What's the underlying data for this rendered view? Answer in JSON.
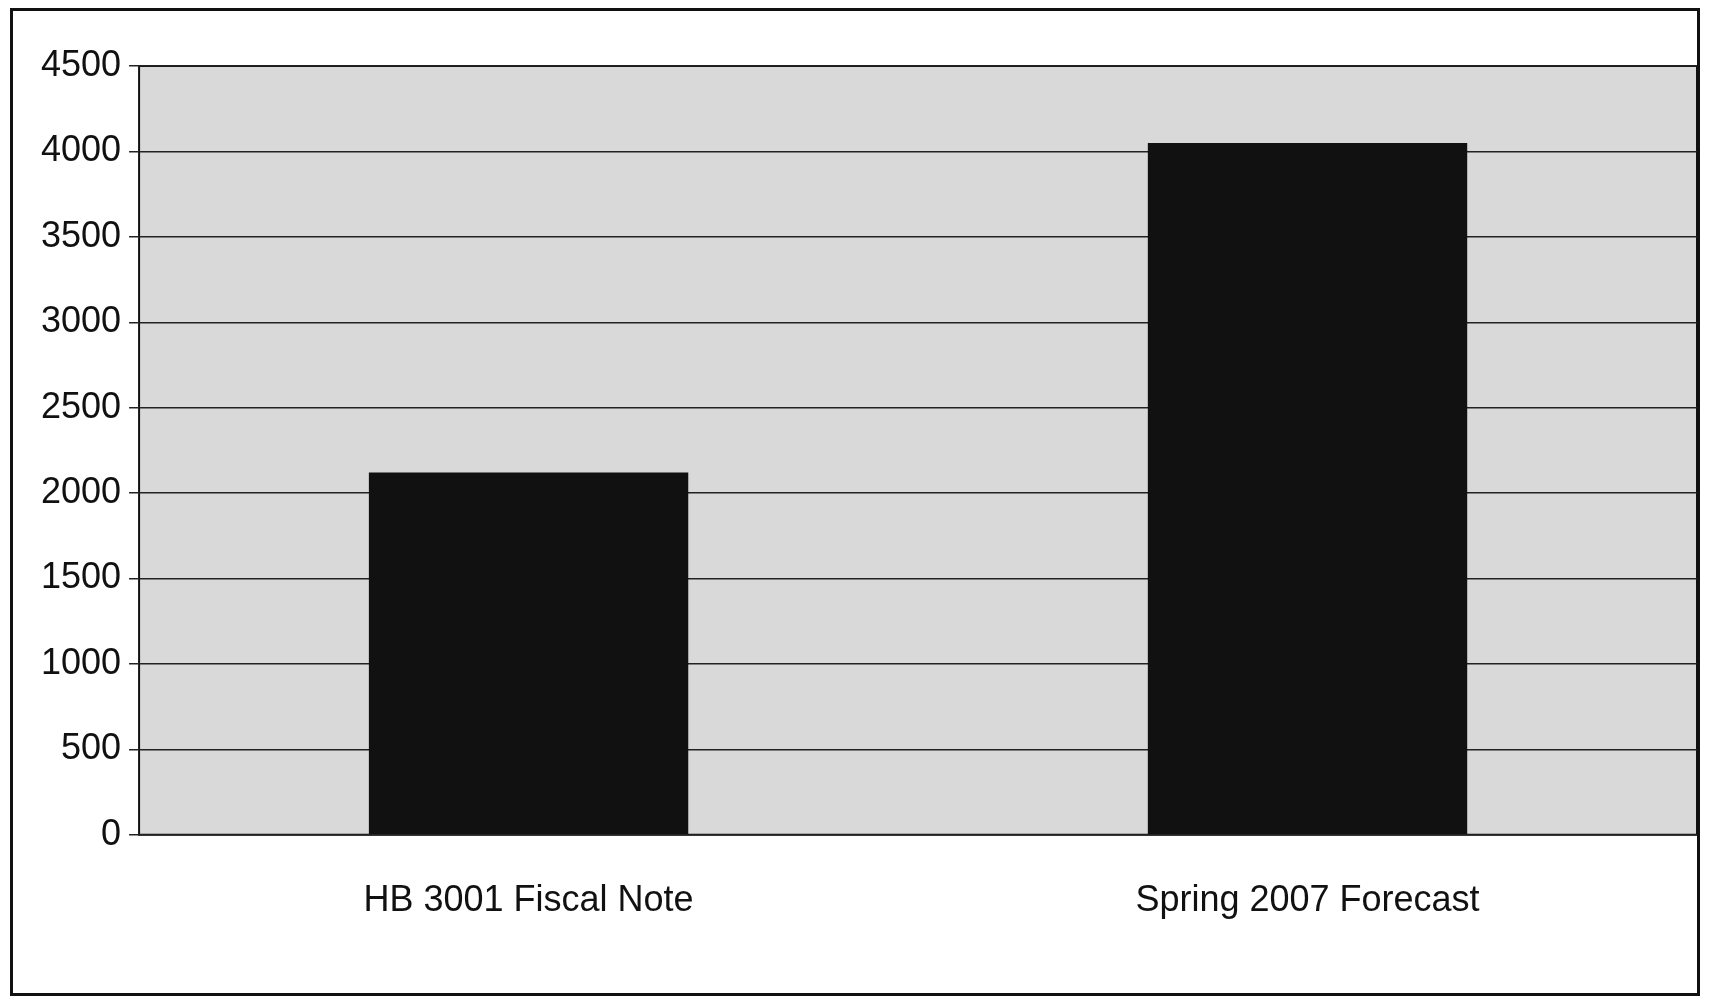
{
  "chart_data": {
    "type": "bar",
    "categories": [
      "HB 3001 Fiscal Note",
      "Spring 2007 Forecast"
    ],
    "values": [
      2120,
      4050
    ],
    "color": "#111111",
    "ylim": [
      0,
      4500
    ],
    "yticks": [
      0,
      500,
      1000,
      1500,
      2000,
      2500,
      3000,
      3500,
      4000,
      4500
    ],
    "grid": "y"
  }
}
